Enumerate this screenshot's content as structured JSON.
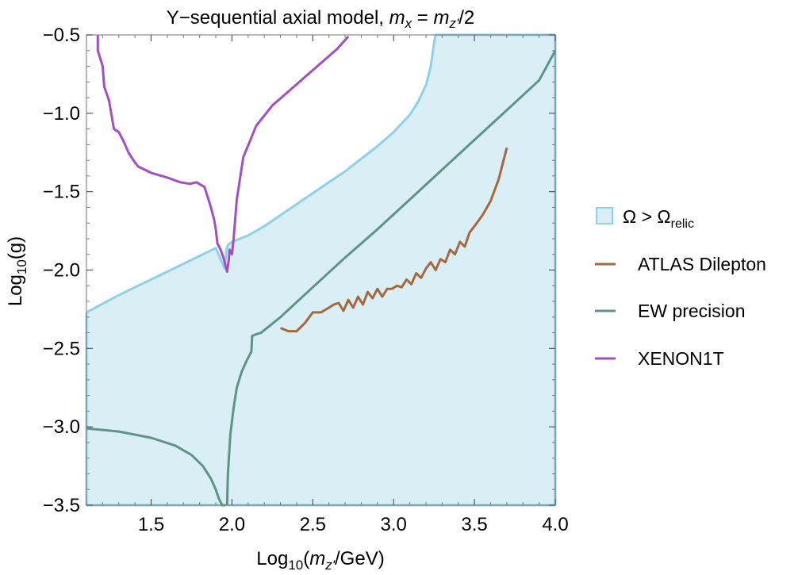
{
  "chart_data": {
    "type": "line",
    "title": {
      "main": "Y−sequential axial model, ",
      "mx": "m",
      "mx_sub": "x",
      "eq": " = ",
      "mz": "m",
      "mz_sub": "z'",
      "tail": "/2"
    },
    "xlabel": {
      "pre": "Log",
      "sub": "10",
      "open": "(",
      "m": "m",
      "m_sub": "z'",
      "post": "/GeV)"
    },
    "ylabel": {
      "pre": "Log",
      "sub": "10",
      "post": "(g)"
    },
    "xlim": [
      1.1,
      4.0
    ],
    "ylim": [
      -3.5,
      -0.5
    ],
    "xticks": [
      1.5,
      2.0,
      2.5,
      3.0,
      3.5,
      4.0
    ],
    "xtick_labels": [
      "1.5",
      "2.0",
      "2.5",
      "3.0",
      "3.5",
      "4.0"
    ],
    "yticks": [
      -3.5,
      -3.0,
      -2.5,
      -2.0,
      -1.5,
      -1.0,
      -0.5
    ],
    "ytick_labels": [
      "−3.5",
      "−3.0",
      "−2.5",
      "−2.0",
      "−1.5",
      "−1.0",
      "−0.5"
    ],
    "legend": {
      "position": "right",
      "region_label": {
        "main": "Ω > Ω",
        "sub": "relic"
      },
      "entries": [
        "ATLAS Dilepton",
        "EW precision",
        "XENON1T"
      ]
    },
    "colors": {
      "region_fill": "#d9eef5",
      "region_edge": "#8fd0ea",
      "atlas": "#a5683f",
      "ew": "#5e9488",
      "xenon": "#a24fc4"
    },
    "region_boundary": [
      [
        1.1,
        -2.27
      ],
      [
        1.3,
        -2.16
      ],
      [
        1.5,
        -2.06
      ],
      [
        1.7,
        -1.96
      ],
      [
        1.9,
        -1.86
      ],
      [
        1.93,
        -1.93
      ],
      [
        1.955,
        -1.99
      ],
      [
        1.965,
        -1.87
      ],
      [
        1.975,
        -1.84
      ],
      [
        2.0,
        -1.82
      ],
      [
        2.1,
        -1.78
      ],
      [
        2.2,
        -1.72
      ],
      [
        2.3,
        -1.65
      ],
      [
        2.4,
        -1.58
      ],
      [
        2.5,
        -1.51
      ],
      [
        2.6,
        -1.44
      ],
      [
        2.7,
        -1.37
      ],
      [
        2.8,
        -1.29
      ],
      [
        2.9,
        -1.21
      ],
      [
        3.0,
        -1.12
      ],
      [
        3.1,
        -1.01
      ],
      [
        3.15,
        -0.93
      ],
      [
        3.2,
        -0.82
      ],
      [
        3.23,
        -0.7
      ],
      [
        3.25,
        -0.55
      ],
      [
        3.26,
        -0.5
      ],
      [
        4.0,
        -0.5
      ]
    ],
    "series": [
      {
        "name": "ATLAS Dilepton",
        "x": [
          2.3,
          2.35,
          2.4,
          2.45,
          2.5,
          2.55,
          2.6,
          2.63,
          2.66,
          2.69,
          2.72,
          2.75,
          2.78,
          2.81,
          2.84,
          2.87,
          2.9,
          2.93,
          2.96,
          2.99,
          3.02,
          3.05,
          3.08,
          3.11,
          3.14,
          3.17,
          3.2,
          3.23,
          3.26,
          3.29,
          3.32,
          3.35,
          3.38,
          3.41,
          3.44,
          3.47,
          3.5,
          3.55,
          3.6,
          3.65,
          3.7
        ],
        "values": [
          -2.37,
          -2.39,
          -2.39,
          -2.34,
          -2.27,
          -2.27,
          -2.24,
          -2.22,
          -2.21,
          -2.26,
          -2.19,
          -2.24,
          -2.17,
          -2.22,
          -2.14,
          -2.18,
          -2.12,
          -2.17,
          -2.12,
          -2.12,
          -2.1,
          -2.11,
          -2.06,
          -2.09,
          -2.02,
          -2.05,
          -1.99,
          -1.95,
          -2.0,
          -1.93,
          -1.95,
          -1.87,
          -1.9,
          -1.82,
          -1.85,
          -1.76,
          -1.72,
          -1.65,
          -1.56,
          -1.42,
          -1.22
        ]
      },
      {
        "name": "EW precision",
        "segments": [
          {
            "x": [
              1.1,
              1.3,
              1.5,
              1.65,
              1.75,
              1.82,
              1.87,
              1.9,
              1.92,
              1.94,
              1.955,
              1.96
            ],
            "values": [
              -3.01,
              -3.03,
              -3.07,
              -3.12,
              -3.18,
              -3.25,
              -3.33,
              -3.4,
              -3.46,
              -3.5,
              -3.5,
              -3.5
            ]
          },
          {
            "x": [
              1.97,
              1.975,
              1.99,
              2.01,
              2.03,
              2.06,
              2.09,
              2.12,
              2.125,
              2.15,
              2.18,
              2.3,
              2.5,
              2.7,
              2.9,
              3.1,
              3.3,
              3.5,
              3.7,
              3.9,
              4.0
            ],
            "values": [
              -3.5,
              -3.3,
              -3.05,
              -2.88,
              -2.75,
              -2.65,
              -2.58,
              -2.52,
              -2.42,
              -2.41,
              -2.4,
              -2.3,
              -2.11,
              -1.92,
              -1.74,
              -1.55,
              -1.36,
              -1.17,
              -0.98,
              -0.79,
              -0.6
            ]
          }
        ]
      },
      {
        "name": "XENON1T",
        "x": [
          1.17,
          1.17,
          1.2,
          1.21,
          1.24,
          1.27,
          1.3,
          1.33,
          1.36,
          1.39,
          1.42,
          1.5,
          1.6,
          1.68,
          1.74,
          1.78,
          1.83,
          1.87,
          1.89,
          1.9,
          1.91,
          1.93,
          1.95,
          1.97,
          1.98,
          1.985,
          2.0,
          2.01,
          2.03,
          2.07,
          2.15,
          2.25,
          2.35,
          2.45,
          2.55,
          2.65,
          2.72
        ],
        "values": [
          -0.5,
          -0.6,
          -0.7,
          -0.83,
          -0.92,
          -1.1,
          -1.12,
          -1.18,
          -1.25,
          -1.3,
          -1.34,
          -1.38,
          -1.41,
          -1.44,
          -1.45,
          -1.44,
          -1.47,
          -1.6,
          -1.68,
          -1.74,
          -1.83,
          -1.87,
          -1.93,
          -2.01,
          -1.94,
          -1.87,
          -1.9,
          -1.8,
          -1.55,
          -1.28,
          -1.08,
          -0.95,
          -0.86,
          -0.77,
          -0.68,
          -0.59,
          -0.51
        ]
      }
    ]
  }
}
